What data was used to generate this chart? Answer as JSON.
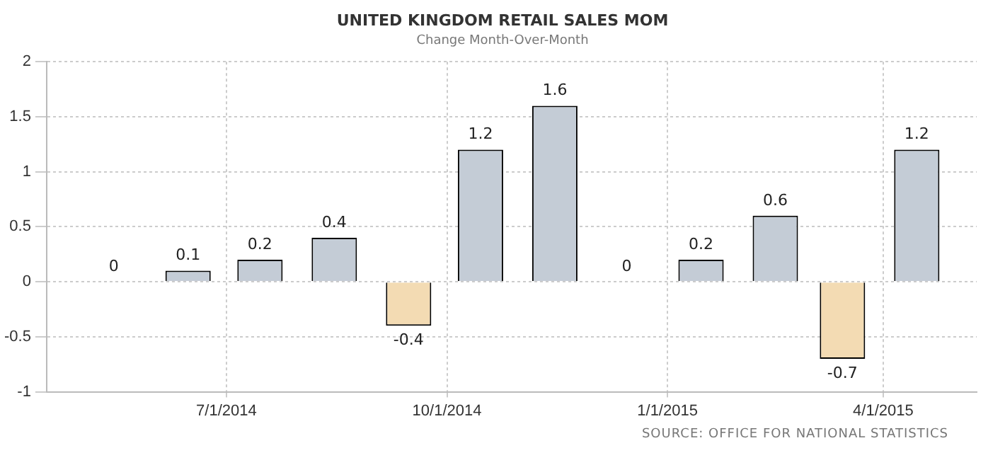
{
  "chart_data": {
    "type": "bar",
    "title": "UNITED KINGDOM RETAIL SALES MOM",
    "subtitle": "Change Month-Over-Month",
    "x": [
      "2014-05-15",
      "2014-06-15",
      "2014-07-15",
      "2014-08-15",
      "2014-09-15",
      "2014-10-15",
      "2014-11-15",
      "2014-12-15",
      "2015-01-15",
      "2015-02-15",
      "2015-03-15",
      "2015-04-15"
    ],
    "values": [
      0,
      0.1,
      0.2,
      0.4,
      -0.4,
      1.2,
      1.6,
      0,
      0.2,
      0.6,
      -0.7,
      1.2
    ],
    "colors": [
      "#c4ccd6",
      "#c4ccd6",
      "#c4ccd6",
      "#c4ccd6",
      "#f3dbb3",
      "#c4ccd6",
      "#c4ccd6",
      "#c4ccd6",
      "#c4ccd6",
      "#c4ccd6",
      "#f3dbb3",
      "#c4ccd6"
    ],
    "xlim": [
      "2014-04-17",
      "2015-05-10"
    ],
    "xticks": [
      {
        "value": "2014-07-01",
        "label": "7/1/2014"
      },
      {
        "value": "2014-10-01",
        "label": "10/1/2014"
      },
      {
        "value": "2015-01-01",
        "label": "1/1/2015"
      },
      {
        "value": "2015-04-01",
        "label": "4/1/2015"
      }
    ],
    "ylim": [
      -1,
      2
    ],
    "yticks": [
      -1,
      -0.5,
      0,
      0.5,
      1,
      1.5,
      2
    ],
    "grid": true,
    "legend": false,
    "data_labels": true,
    "annotations": [
      "SOURCE: OFFICE FOR NATIONAL STATISTICS"
    ]
  }
}
